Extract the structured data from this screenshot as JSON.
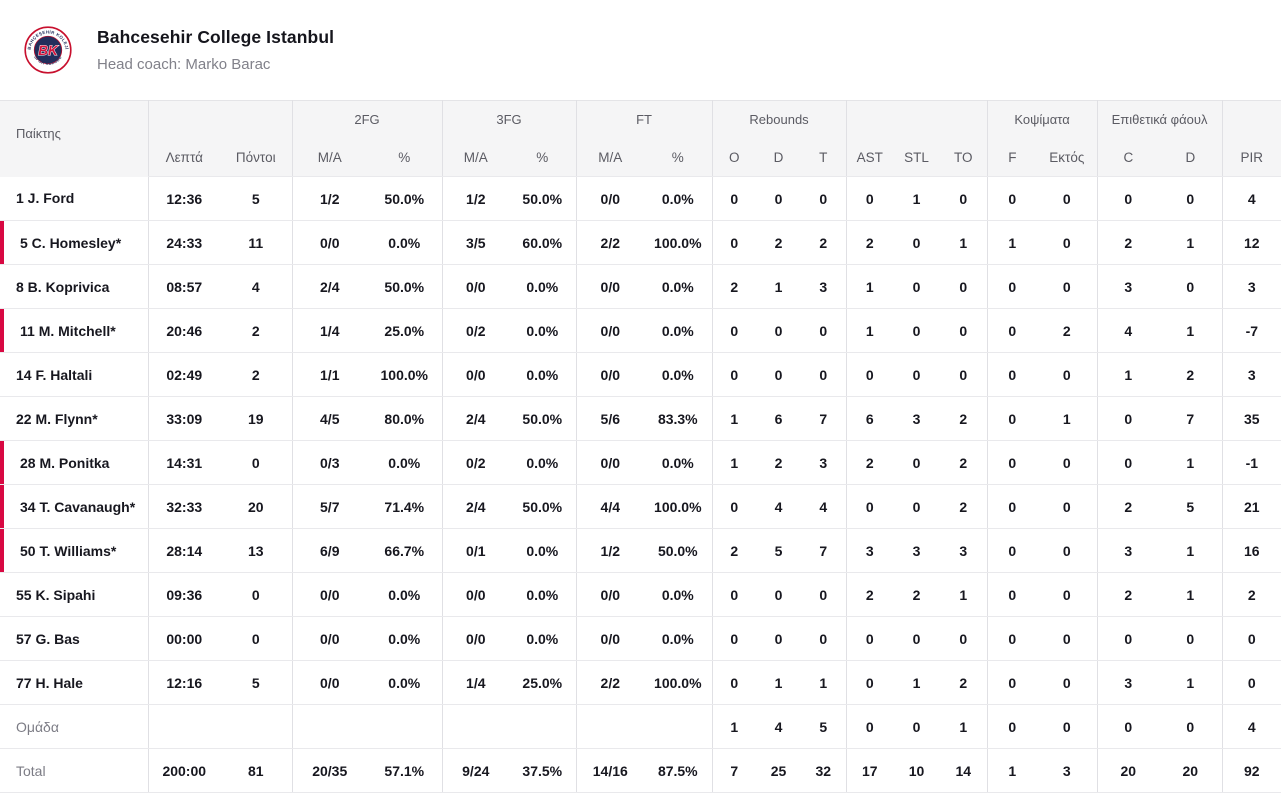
{
  "team": {
    "name": "Bahcesehir College Istanbul",
    "coach_line": "Head coach: Marko Barac",
    "logo": {
      "initials": "BK",
      "ring_text_top": "BAHÇEŞEHİR KOLEJİ",
      "ring_text_bottom": "SPOR KULÜBÜ"
    }
  },
  "colors": {
    "accent_red": "#d80842",
    "logo_red": "#c8102e",
    "logo_navy": "#232e5c",
    "header_bg": "#f5f5f6",
    "row_border": "#e9e9ec",
    "text_dark": "#17171f",
    "text_gray": "#7c7c85"
  },
  "table": {
    "groups": {
      "fg2": "2FG",
      "fg3": "3FG",
      "ft": "FT",
      "rebounds": "Rebounds",
      "blocks": "Κοψίματα",
      "off_fouls": "Επιθετικά φάουλ"
    },
    "columns": {
      "player": "Παίκτης",
      "min": "Λεπτά",
      "pts": "Πόντοι",
      "ma2": "M/A",
      "pct2": "%",
      "ma3": "M/A",
      "pct3": "%",
      "maft": "M/A",
      "pctft": "%",
      "reb_o": "O",
      "reb_d": "D",
      "reb_t": "T",
      "ast": "AST",
      "stl": "STL",
      "to": "TO",
      "blk_f": "F",
      "blk_ektos": "Εκτός",
      "foul_c": "C",
      "foul_d": "D",
      "pir": "PIR"
    },
    "rows": [
      {
        "name": "1 J. Ford",
        "oncourt": false,
        "muted": false,
        "min": "12:36",
        "pts": "5",
        "fg2_ma": "1/2",
        "fg2_pct": "50.0%",
        "fg3_ma": "1/2",
        "fg3_pct": "50.0%",
        "ft_ma": "0/0",
        "ft_pct": "0.0%",
        "reb_o": "0",
        "reb_d": "0",
        "reb_t": "0",
        "ast": "0",
        "stl": "1",
        "to": "0",
        "blk_f": "0",
        "blk_ektos": "0",
        "foul_c": "0",
        "foul_d": "0",
        "pir": "4"
      },
      {
        "name": "5 C. Homesley*",
        "oncourt": true,
        "muted": false,
        "min": "24:33",
        "pts": "11",
        "fg2_ma": "0/0",
        "fg2_pct": "0.0%",
        "fg3_ma": "3/5",
        "fg3_pct": "60.0%",
        "ft_ma": "2/2",
        "ft_pct": "100.0%",
        "reb_o": "0",
        "reb_d": "2",
        "reb_t": "2",
        "ast": "2",
        "stl": "0",
        "to": "1",
        "blk_f": "1",
        "blk_ektos": "0",
        "foul_c": "2",
        "foul_d": "1",
        "pir": "12"
      },
      {
        "name": "8 B. Koprivica",
        "oncourt": false,
        "muted": false,
        "min": "08:57",
        "pts": "4",
        "fg2_ma": "2/4",
        "fg2_pct": "50.0%",
        "fg3_ma": "0/0",
        "fg3_pct": "0.0%",
        "ft_ma": "0/0",
        "ft_pct": "0.0%",
        "reb_o": "2",
        "reb_d": "1",
        "reb_t": "3",
        "ast": "1",
        "stl": "0",
        "to": "0",
        "blk_f": "0",
        "blk_ektos": "0",
        "foul_c": "3",
        "foul_d": "0",
        "pir": "3"
      },
      {
        "name": "11 M. Mitchell*",
        "oncourt": true,
        "muted": false,
        "min": "20:46",
        "pts": "2",
        "fg2_ma": "1/4",
        "fg2_pct": "25.0%",
        "fg3_ma": "0/2",
        "fg3_pct": "0.0%",
        "ft_ma": "0/0",
        "ft_pct": "0.0%",
        "reb_o": "0",
        "reb_d": "0",
        "reb_t": "0",
        "ast": "1",
        "stl": "0",
        "to": "0",
        "blk_f": "0",
        "blk_ektos": "2",
        "foul_c": "4",
        "foul_d": "1",
        "pir": "-7"
      },
      {
        "name": "14 F. Haltali",
        "oncourt": false,
        "muted": false,
        "min": "02:49",
        "pts": "2",
        "fg2_ma": "1/1",
        "fg2_pct": "100.0%",
        "fg3_ma": "0/0",
        "fg3_pct": "0.0%",
        "ft_ma": "0/0",
        "ft_pct": "0.0%",
        "reb_o": "0",
        "reb_d": "0",
        "reb_t": "0",
        "ast": "0",
        "stl": "0",
        "to": "0",
        "blk_f": "0",
        "blk_ektos": "0",
        "foul_c": "1",
        "foul_d": "2",
        "pir": "3"
      },
      {
        "name": "22 M. Flynn*",
        "oncourt": false,
        "muted": false,
        "min": "33:09",
        "pts": "19",
        "fg2_ma": "4/5",
        "fg2_pct": "80.0%",
        "fg3_ma": "2/4",
        "fg3_pct": "50.0%",
        "ft_ma": "5/6",
        "ft_pct": "83.3%",
        "reb_o": "1",
        "reb_d": "6",
        "reb_t": "7",
        "ast": "6",
        "stl": "3",
        "to": "2",
        "blk_f": "0",
        "blk_ektos": "1",
        "foul_c": "0",
        "foul_d": "7",
        "pir": "35"
      },
      {
        "name": "28 M. Ponitka",
        "oncourt": true,
        "muted": false,
        "min": "14:31",
        "pts": "0",
        "fg2_ma": "0/3",
        "fg2_pct": "0.0%",
        "fg3_ma": "0/2",
        "fg3_pct": "0.0%",
        "ft_ma": "0/0",
        "ft_pct": "0.0%",
        "reb_o": "1",
        "reb_d": "2",
        "reb_t": "3",
        "ast": "2",
        "stl": "0",
        "to": "2",
        "blk_f": "0",
        "blk_ektos": "0",
        "foul_c": "0",
        "foul_d": "1",
        "pir": "-1"
      },
      {
        "name": "34 T. Cavanaugh*",
        "oncourt": true,
        "muted": false,
        "min": "32:33",
        "pts": "20",
        "fg2_ma": "5/7",
        "fg2_pct": "71.4%",
        "fg3_ma": "2/4",
        "fg3_pct": "50.0%",
        "ft_ma": "4/4",
        "ft_pct": "100.0%",
        "reb_o": "0",
        "reb_d": "4",
        "reb_t": "4",
        "ast": "0",
        "stl": "0",
        "to": "2",
        "blk_f": "0",
        "blk_ektos": "0",
        "foul_c": "2",
        "foul_d": "5",
        "pir": "21"
      },
      {
        "name": "50 T. Williams*",
        "oncourt": true,
        "muted": false,
        "min": "28:14",
        "pts": "13",
        "fg2_ma": "6/9",
        "fg2_pct": "66.7%",
        "fg3_ma": "0/1",
        "fg3_pct": "0.0%",
        "ft_ma": "1/2",
        "ft_pct": "50.0%",
        "reb_o": "2",
        "reb_d": "5",
        "reb_t": "7",
        "ast": "3",
        "stl": "3",
        "to": "3",
        "blk_f": "0",
        "blk_ektos": "0",
        "foul_c": "3",
        "foul_d": "1",
        "pir": "16"
      },
      {
        "name": "55 K. Sipahi",
        "oncourt": false,
        "muted": false,
        "min": "09:36",
        "pts": "0",
        "fg2_ma": "0/0",
        "fg2_pct": "0.0%",
        "fg3_ma": "0/0",
        "fg3_pct": "0.0%",
        "ft_ma": "0/0",
        "ft_pct": "0.0%",
        "reb_o": "0",
        "reb_d": "0",
        "reb_t": "0",
        "ast": "2",
        "stl": "2",
        "to": "1",
        "blk_f": "0",
        "blk_ektos": "0",
        "foul_c": "2",
        "foul_d": "1",
        "pir": "2"
      },
      {
        "name": "57 G. Bas",
        "oncourt": false,
        "muted": false,
        "min": "00:00",
        "pts": "0",
        "fg2_ma": "0/0",
        "fg2_pct": "0.0%",
        "fg3_ma": "0/0",
        "fg3_pct": "0.0%",
        "ft_ma": "0/0",
        "ft_pct": "0.0%",
        "reb_o": "0",
        "reb_d": "0",
        "reb_t": "0",
        "ast": "0",
        "stl": "0",
        "to": "0",
        "blk_f": "0",
        "blk_ektos": "0",
        "foul_c": "0",
        "foul_d": "0",
        "pir": "0"
      },
      {
        "name": "77 H. Hale",
        "oncourt": false,
        "muted": false,
        "min": "12:16",
        "pts": "5",
        "fg2_ma": "0/0",
        "fg2_pct": "0.0%",
        "fg3_ma": "1/4",
        "fg3_pct": "25.0%",
        "ft_ma": "2/2",
        "ft_pct": "100.0%",
        "reb_o": "0",
        "reb_d": "1",
        "reb_t": "1",
        "ast": "0",
        "stl": "1",
        "to": "2",
        "blk_f": "0",
        "blk_ektos": "0",
        "foul_c": "3",
        "foul_d": "1",
        "pir": "0"
      },
      {
        "name": "Ομάδα",
        "oncourt": false,
        "muted": true,
        "min": "",
        "pts": "",
        "fg2_ma": "",
        "fg2_pct": "",
        "fg3_ma": "",
        "fg3_pct": "",
        "ft_ma": "",
        "ft_pct": "",
        "reb_o": "1",
        "reb_d": "4",
        "reb_t": "5",
        "ast": "0",
        "stl": "0",
        "to": "1",
        "blk_f": "0",
        "blk_ektos": "0",
        "foul_c": "0",
        "foul_d": "0",
        "pir": "4"
      },
      {
        "name": "Total",
        "oncourt": false,
        "muted": true,
        "min": "200:00",
        "pts": "81",
        "fg2_ma": "20/35",
        "fg2_pct": "57.1%",
        "fg3_ma": "9/24",
        "fg3_pct": "37.5%",
        "ft_ma": "14/16",
        "ft_pct": "87.5%",
        "reb_o": "7",
        "reb_d": "25",
        "reb_t": "32",
        "ast": "17",
        "stl": "10",
        "to": "14",
        "blk_f": "1",
        "blk_ektos": "3",
        "foul_c": "20",
        "foul_d": "20",
        "pir": "92"
      }
    ]
  }
}
